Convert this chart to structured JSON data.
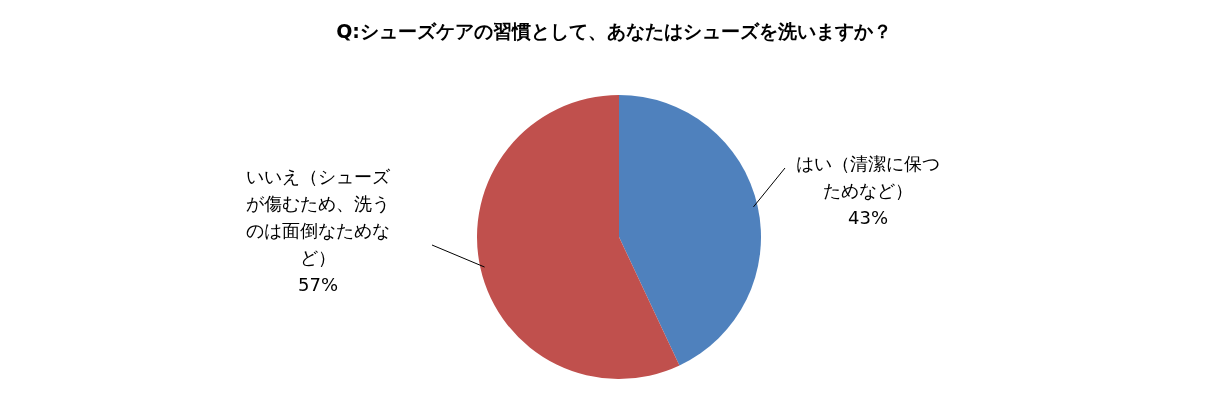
{
  "chart_data": {
    "type": "pie",
    "title": "Q:シューズケアの習慣として、あなたはシューズを洗いますか？",
    "categories": [
      "はい（清潔に保つためなど）",
      "いいえ（シューズが傷むため、洗うのは面倒なためなど）"
    ],
    "values": [
      43,
      57
    ],
    "colors": [
      "#4f81bd",
      "#c0504d"
    ],
    "value_labels": [
      "43%",
      "57%"
    ],
    "legend": false
  }
}
